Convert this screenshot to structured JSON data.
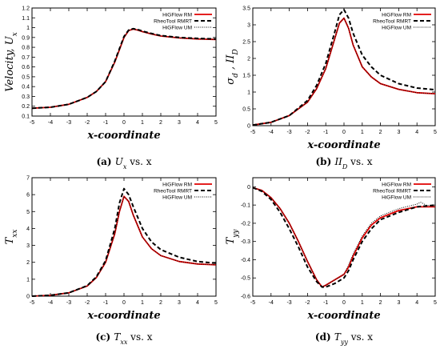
{
  "chart_data": [
    {
      "type": "line",
      "xlabel": "x-coordinate",
      "ylabel_main": "Velocity, U",
      "ylabel_sub": "x",
      "xlim": [
        -5,
        5
      ],
      "ylim": [
        0.1,
        1.2
      ],
      "xticks": [
        -5,
        -4,
        -3,
        -2,
        -1,
        0,
        1,
        2,
        3,
        4,
        5
      ],
      "yticks": [
        0.1,
        0.2,
        0.3,
        0.4,
        0.5,
        0.6,
        0.7,
        0.8,
        0.9,
        1,
        1.1,
        1.2
      ],
      "legend_position": "top-right",
      "caption_letter": "(a)",
      "caption_main": "U",
      "caption_sub": "x",
      "caption_tail": " vs. x",
      "series": [
        {
          "name": "HiGFlow RM",
          "color": "#e00000",
          "style": "solid",
          "x": [
            -5,
            -4,
            -3,
            -2,
            -1.5,
            -1,
            -0.5,
            0,
            0.25,
            0.5,
            0.75,
            1,
            1.5,
            2,
            3,
            4,
            5
          ],
          "y": [
            0.18,
            0.19,
            0.22,
            0.29,
            0.35,
            0.45,
            0.65,
            0.9,
            0.97,
            0.985,
            0.975,
            0.96,
            0.935,
            0.915,
            0.895,
            0.885,
            0.88
          ]
        },
        {
          "name": "RheoTool RMRT",
          "color": "#000000",
          "style": "dashed",
          "x": [
            -5,
            -4,
            -3,
            -2,
            -1.5,
            -1,
            -0.5,
            0,
            0.25,
            0.5,
            0.75,
            1,
            1.5,
            2,
            3,
            4,
            5
          ],
          "y": [
            0.18,
            0.19,
            0.22,
            0.29,
            0.35,
            0.45,
            0.66,
            0.91,
            0.975,
            0.99,
            0.98,
            0.965,
            0.94,
            0.92,
            0.9,
            0.89,
            0.885
          ]
        },
        {
          "name": "HiGFlow UM",
          "color": "#000000",
          "style": "dotted",
          "x": [
            -5,
            -4,
            -3,
            -2,
            -1.5,
            -1,
            -0.5,
            0,
            0.25,
            0.5,
            0.75,
            1,
            1.5,
            2,
            3,
            4,
            5
          ],
          "y": [
            0.18,
            0.19,
            0.22,
            0.29,
            0.35,
            0.45,
            0.65,
            0.9,
            0.97,
            0.985,
            0.975,
            0.96,
            0.935,
            0.915,
            0.895,
            0.885,
            0.88
          ]
        }
      ]
    },
    {
      "type": "line",
      "xlabel": "x-coordinate",
      "ylabel_main": "σ",
      "ylabel_sub": "d",
      "ylabel_tail": " , II",
      "ylabel_sub2": "D",
      "xlim": [
        -5,
        5
      ],
      "ylim": [
        0,
        3.5
      ],
      "xticks": [
        -5,
        -4,
        -3,
        -2,
        -1,
        0,
        1,
        2,
        3,
        4,
        5
      ],
      "yticks": [
        0,
        0.5,
        1,
        1.5,
        2,
        2.5,
        3,
        3.5
      ],
      "legend_position": "top-right",
      "caption_letter": "(b)",
      "caption_main": "II",
      "caption_sub": "D",
      "caption_tail": " vs. x",
      "series": [
        {
          "name": "HiGFlow RM",
          "color": "#e00000",
          "style": "solid",
          "x": [
            -5,
            -4,
            -3,
            -2,
            -1.5,
            -1,
            -0.5,
            -0.25,
            0,
            0.25,
            0.5,
            1,
            1.5,
            2,
            3,
            4,
            5
          ],
          "y": [
            0.02,
            0.1,
            0.3,
            0.7,
            1.1,
            1.7,
            2.6,
            3.05,
            3.2,
            2.9,
            2.4,
            1.75,
            1.45,
            1.25,
            1.08,
            0.98,
            0.95
          ]
        },
        {
          "name": "RheoTool RMRT",
          "color": "#000000",
          "style": "dashed",
          "x": [
            -5,
            -4,
            -3,
            -2,
            -1.5,
            -1,
            -0.5,
            -0.25,
            0,
            0.25,
            0.5,
            1,
            1.5,
            2,
            3,
            4,
            5
          ],
          "y": [
            0.02,
            0.1,
            0.3,
            0.75,
            1.2,
            1.85,
            2.8,
            3.3,
            3.45,
            3.2,
            2.75,
            2.1,
            1.75,
            1.5,
            1.25,
            1.12,
            1.07
          ]
        },
        {
          "name": "HiGFlow UM",
          "color": "#000000",
          "style": "dotted",
          "x": [
            -5,
            -4,
            -3,
            -2,
            -1.5,
            -1,
            -0.5,
            -0.25,
            0,
            0.25,
            0.5,
            1,
            1.5,
            2,
            3,
            4,
            5
          ],
          "y": [
            0.02,
            0.1,
            0.3,
            0.7,
            1.1,
            1.7,
            2.6,
            3.05,
            3.2,
            2.9,
            2.4,
            1.75,
            1.45,
            1.25,
            1.08,
            0.98,
            0.95
          ]
        }
      ]
    },
    {
      "type": "line",
      "xlabel": "x-coordinate",
      "ylabel_main": "T",
      "ylabel_sub": "xx",
      "xlim": [
        -5,
        5
      ],
      "ylim": [
        0,
        7
      ],
      "xticks": [
        -5,
        -4,
        -3,
        -2,
        -1,
        0,
        1,
        2,
        3,
        4,
        5
      ],
      "yticks": [
        0,
        1,
        2,
        3,
        4,
        5,
        6,
        7
      ],
      "legend_position": "top-right",
      "caption_letter": "(c)",
      "caption_main": "T",
      "caption_sub": "xx",
      "caption_tail": " vs. x",
      "series": [
        {
          "name": "HiGFlow RM",
          "color": "#e00000",
          "style": "solid",
          "x": [
            -5,
            -4,
            -3,
            -2,
            -1.5,
            -1,
            -0.5,
            -0.25,
            0,
            0.25,
            0.5,
            1,
            1.5,
            2,
            3,
            4,
            5
          ],
          "y": [
            0,
            0.05,
            0.2,
            0.6,
            1.1,
            2.0,
            3.7,
            5.0,
            5.9,
            5.6,
            4.8,
            3.5,
            2.8,
            2.4,
            2.05,
            1.9,
            1.85
          ]
        },
        {
          "name": "RheoTool RMRT",
          "color": "#000000",
          "style": "dashed",
          "x": [
            -5,
            -4,
            -3,
            -2,
            -1.5,
            -1,
            -0.5,
            -0.25,
            0,
            0.25,
            0.5,
            1,
            1.5,
            2,
            3,
            4,
            5
          ],
          "y": [
            0,
            0.05,
            0.2,
            0.62,
            1.15,
            2.1,
            4.0,
            5.5,
            6.35,
            6.0,
            5.3,
            4.0,
            3.2,
            2.75,
            2.3,
            2.05,
            1.95
          ]
        },
        {
          "name": "HiGFlow UM",
          "color": "#000000",
          "style": "dotted",
          "x": [
            -5,
            -4,
            -3,
            -2,
            -1.5,
            -1,
            -0.5,
            -0.25,
            0,
            0.25,
            0.5,
            1,
            1.5,
            2,
            3,
            4,
            5
          ],
          "y": [
            0,
            0.05,
            0.2,
            0.6,
            1.1,
            2.0,
            3.7,
            5.0,
            5.9,
            5.6,
            4.8,
            3.5,
            2.8,
            2.4,
            2.05,
            1.9,
            1.85
          ]
        }
      ]
    },
    {
      "type": "line",
      "xlabel": "x-coordinate",
      "ylabel_main": "T",
      "ylabel_sub": "yy",
      "xlim": [
        -5,
        5
      ],
      "ylim": [
        -0.6,
        0.05
      ],
      "xticks": [
        -5,
        -4,
        -3,
        -2,
        -1,
        0,
        1,
        2,
        3,
        4,
        5
      ],
      "yticks": [
        -0.6,
        -0.5,
        -0.4,
        -0.3,
        -0.2,
        -0.1,
        0
      ],
      "legend_position": "top-right",
      "caption_letter": "(d)",
      "caption_main": "T",
      "caption_sub": "yy",
      "caption_tail": " vs. x",
      "series": [
        {
          "name": "HiGFlow RM",
          "color": "#e00000",
          "style": "solid",
          "x": [
            -5,
            -4.5,
            -4,
            -3.5,
            -3,
            -2.5,
            -2,
            -1.5,
            -1.2,
            -1,
            -0.5,
            0,
            0.25,
            0.5,
            1,
            1.5,
            2,
            3,
            4,
            5
          ],
          "y": [
            -0.005,
            -0.02,
            -0.06,
            -0.12,
            -0.2,
            -0.3,
            -0.41,
            -0.51,
            -0.55,
            -0.54,
            -0.51,
            -0.48,
            -0.44,
            -0.38,
            -0.28,
            -0.21,
            -0.17,
            -0.13,
            -0.11,
            -0.11
          ]
        },
        {
          "name": "RheoTool RMRT",
          "color": "#000000",
          "style": "dashed",
          "x": [
            -5,
            -4.5,
            -4,
            -3.5,
            -3,
            -2.5,
            -2,
            -1.5,
            -1.2,
            -1,
            -0.5,
            0,
            0.25,
            0.5,
            1,
            1.5,
            2,
            3,
            4,
            5
          ],
          "y": [
            -0.005,
            -0.025,
            -0.07,
            -0.14,
            -0.23,
            -0.33,
            -0.44,
            -0.52,
            -0.55,
            -0.55,
            -0.53,
            -0.5,
            -0.46,
            -0.4,
            -0.3,
            -0.23,
            -0.18,
            -0.14,
            -0.11,
            -0.1
          ]
        },
        {
          "name": "HiGFlow UM",
          "color": "#000000",
          "style": "dotted",
          "x": [
            -5,
            -4.5,
            -4,
            -3.5,
            -3,
            -2.5,
            -2,
            -1.5,
            -1.2,
            -1,
            -0.5,
            0,
            0.25,
            0.5,
            1,
            1.5,
            2,
            3,
            4,
            4.2,
            4.5,
            5
          ],
          "y": [
            -0.005,
            -0.02,
            -0.06,
            -0.12,
            -0.2,
            -0.3,
            -0.41,
            -0.51,
            -0.55,
            -0.54,
            -0.51,
            -0.48,
            -0.43,
            -0.37,
            -0.27,
            -0.2,
            -0.16,
            -0.12,
            -0.095,
            -0.085,
            -0.1,
            -0.11
          ]
        }
      ]
    }
  ]
}
